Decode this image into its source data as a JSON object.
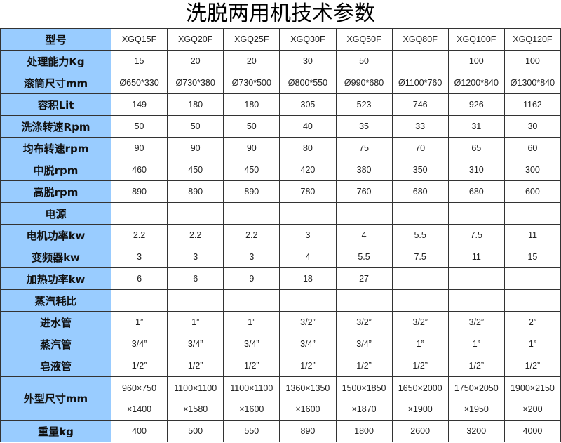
{
  "title": "洗脱两用机技术参数",
  "rows": [
    {
      "label": "型号",
      "values": [
        "XGQ15F",
        "XGQ20F",
        "XGQ25F",
        "XGQ30F",
        "XGQ50F",
        "XGQ80F",
        "XGQ100F",
        "XGQ120F"
      ]
    },
    {
      "label": "处理能力Kg",
      "values": [
        "15",
        "20",
        "20",
        "30",
        "50",
        "",
        "100",
        "100"
      ]
    },
    {
      "label": "滚筒尺寸mm",
      "values": [
        "Ø650*330",
        "Ø730*380",
        "Ø730*500",
        "Ø800*550",
        "Ø990*680",
        "Ø1100*760",
        "Ø1200*840",
        "Ø1300*840"
      ]
    },
    {
      "label": "容积Lit",
      "values": [
        "149",
        "180",
        "180",
        "305",
        "523",
        "746",
        "926",
        "1162"
      ]
    },
    {
      "label": "洗涤转速Rpm",
      "values": [
        "50",
        "50",
        "50",
        "40",
        "35",
        "33",
        "31",
        "30"
      ]
    },
    {
      "label": "均布转速rpm",
      "values": [
        "90",
        "90",
        "90",
        "80",
        "75",
        "70",
        "65",
        "60"
      ]
    },
    {
      "label": "中脱rpm",
      "values": [
        "460",
        "450",
        "450",
        "420",
        "380",
        "350",
        "310",
        "300"
      ]
    },
    {
      "label": "高脱rpm",
      "values": [
        "890",
        "890",
        "890",
        "780",
        "760",
        "680",
        "680",
        "600"
      ]
    },
    {
      "label": "电源",
      "values": [
        "",
        "",
        "",
        "",
        "",
        "",
        "",
        ""
      ]
    },
    {
      "label": "电机功率kw",
      "values": [
        "2.2",
        "2.2",
        "2.2",
        "3",
        "4",
        "5.5",
        "7.5",
        "11"
      ]
    },
    {
      "label": "变频器kw",
      "values": [
        "3",
        "3",
        "3",
        "4",
        "5.5",
        "7.5",
        "11",
        "15"
      ]
    },
    {
      "label": "加热功率kw",
      "values": [
        "6",
        "6",
        "9",
        "18",
        "27",
        "",
        "",
        ""
      ]
    },
    {
      "label": "蒸汽耗比",
      "values": [
        "",
        "",
        "",
        "",
        "",
        "",
        "",
        ""
      ]
    },
    {
      "label": "进水管",
      "values": [
        "1”",
        "1”",
        "1”",
        "3/2”",
        "3/2”",
        "3/2”",
        "3/2”",
        "2”"
      ]
    },
    {
      "label": "蒸汽管",
      "values": [
        "3/4”",
        "3/4”",
        "3/4”",
        "3/4”",
        "3/4”",
        "1”",
        "1”",
        "1”"
      ]
    },
    {
      "label": "皂液管",
      "values": [
        "1/2”",
        "1/2”",
        "1/2”",
        "1/2”",
        "1/2”",
        "1/2”",
        "1/2”",
        "1/2”"
      ]
    }
  ],
  "dimensions": {
    "label": "外型尺寸mm",
    "line1": [
      "960×750",
      "1100×1100",
      "1100×1100",
      "1360×1350",
      "1500×1850",
      "1650×2000",
      "1750×2050",
      "1900×2150"
    ],
    "line2": [
      "×1400",
      "×1580",
      "×1600",
      "×1600",
      "×1870",
      "×1900",
      "×1950",
      "×200"
    ]
  },
  "weight": {
    "label": "重量kg",
    "values": [
      "400",
      "500",
      "550",
      "890",
      "1800",
      "2600",
      "3200",
      "4000"
    ]
  }
}
